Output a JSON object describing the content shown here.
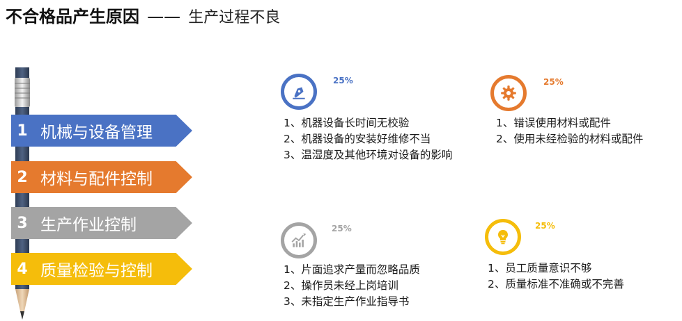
{
  "title": {
    "main": "不合格品产生原因",
    "dash": "——",
    "sub": "生产过程不良"
  },
  "categories": [
    {
      "num": "1",
      "label": "机械与设备管理",
      "color": "#4a72c4"
    },
    {
      "num": "2",
      "label": "材料与配件控制",
      "color": "#e57a2e"
    },
    {
      "num": "3",
      "label": "生产作业控制",
      "color": "#a4a4a4"
    },
    {
      "num": "4",
      "label": "质量检验与控制",
      "color": "#f5bd0b"
    }
  ],
  "blocks": [
    {
      "icon": "pen-nib-icon",
      "percent": "25%",
      "color": "#4a72c4",
      "items": [
        "1、机器设备长时间无校验",
        "2、机器设备的安装好维修不当",
        "3、温湿度及其他环境对设备的影响"
      ]
    },
    {
      "icon": "gear-icon",
      "percent": "25%",
      "color": "#e57a2e",
      "items": [
        "1、错误使用材料或配件",
        "2、使用未经检验的材料或配件"
      ]
    },
    {
      "icon": "chart-growth-icon",
      "percent": "25%",
      "color": "#a4a4a4",
      "items": [
        "1、片面追求产量而忽略品质",
        "2、操作员未经上岗培训",
        "3、未指定生产作业指导书"
      ]
    },
    {
      "icon": "lightbulb-icon",
      "percent": "25%",
      "color": "#f5bd0b",
      "items": [
        "1、员工质量意识不够",
        "2、质量标准不准确或不完善"
      ]
    }
  ]
}
